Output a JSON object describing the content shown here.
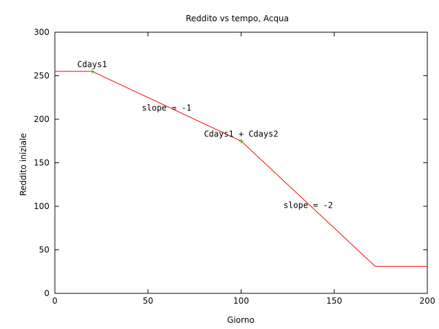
{
  "chart_data": {
    "type": "line",
    "title": "Reddito vs tempo, Acqua",
    "xlabel": "Giorno",
    "ylabel": "Reddito iniziale",
    "xlim": [
      0,
      200
    ],
    "ylim": [
      0,
      300
    ],
    "xticks": [
      0,
      50,
      100,
      150,
      200
    ],
    "yticks": [
      0,
      50,
      100,
      150,
      200,
      250,
      300
    ],
    "grid": false,
    "series": [
      {
        "color": "#ff0000",
        "x": [
          0,
          20,
          100,
          172,
          200
        ],
        "y": [
          255,
          255,
          175,
          31,
          31
        ]
      }
    ],
    "markers": {
      "color": "#00cc00",
      "points": [
        {
          "x": 20,
          "y": 255
        },
        {
          "x": 100,
          "y": 175
        }
      ]
    },
    "annotations": [
      {
        "text": "Cdays1",
        "x": 20,
        "y": 263
      },
      {
        "text": "slope = -1",
        "x": 60,
        "y": 213
      },
      {
        "text": "Cdays1 + Cdays2",
        "x": 100,
        "y": 183
      },
      {
        "text": "slope = -2",
        "x": 136,
        "y": 101
      }
    ]
  }
}
